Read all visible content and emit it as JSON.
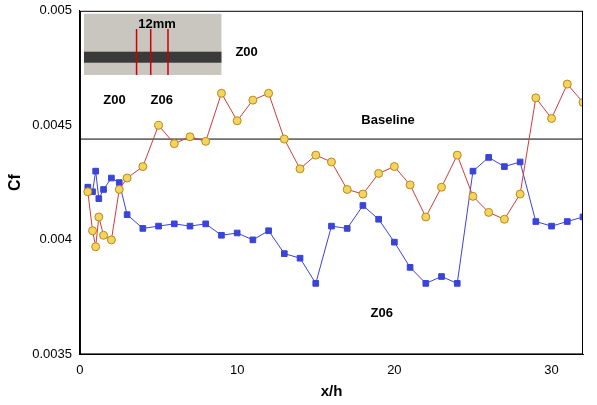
{
  "chart_data": {
    "type": "line",
    "x_label": "x/h",
    "y_label": "Cf",
    "xlim": [
      0,
      32
    ],
    "xticks": [
      0,
      10,
      20,
      30
    ],
    "ylim": [
      0.0035,
      0.005
    ],
    "yticks": [
      0.0035,
      0.004,
      0.0045,
      0.005
    ],
    "grid": false,
    "series": [
      {
        "name": "Z00",
        "color": "#d23c3c",
        "marker": "circle",
        "line_style": "solid",
        "x": [
          0.5,
          0.8,
          1.0,
          1.2,
          1.5,
          2,
          2.5,
          3,
          4,
          5,
          6,
          7,
          8,
          9,
          10,
          11,
          12,
          13,
          14,
          15,
          16,
          17,
          18,
          19,
          20,
          21,
          22,
          23,
          24,
          25,
          26,
          27,
          28,
          29,
          30,
          31,
          32
        ],
        "values": [
          0.00421,
          0.00404,
          0.00397,
          0.0041,
          0.00402,
          0.004,
          0.00422,
          0.00427,
          0.00432,
          0.0045,
          0.00442,
          0.00445,
          0.00443,
          0.00464,
          0.00452,
          0.00461,
          0.00464,
          0.00444,
          0.00431,
          0.00437,
          0.00434,
          0.00422,
          0.0042,
          0.00429,
          0.00432,
          0.00424,
          0.0041,
          0.00423,
          0.00437,
          0.00419,
          0.00412,
          0.00409,
          0.0042,
          0.00462,
          0.00453,
          0.00468,
          0.0046
        ]
      },
      {
        "name": "Z06",
        "color": "#3a44d8",
        "marker": "square",
        "line_style": "solid",
        "x": [
          0.5,
          0.8,
          1.0,
          1.2,
          1.5,
          2,
          2.5,
          3,
          4,
          5,
          6,
          7,
          8,
          9,
          10,
          11,
          12,
          13,
          14,
          15,
          16,
          17,
          18,
          19,
          20,
          21,
          22,
          23,
          24,
          25,
          26,
          27,
          28,
          29,
          30,
          31,
          32
        ],
        "values": [
          0.00423,
          0.00421,
          0.0043,
          0.00418,
          0.00422,
          0.00427,
          0.00425,
          0.00411,
          0.00405,
          0.00406,
          0.00407,
          0.00406,
          0.00407,
          0.00402,
          0.00403,
          0.004,
          0.00404,
          0.00394,
          0.00392,
          0.00381,
          0.00406,
          0.00405,
          0.00415,
          0.00409,
          0.00399,
          0.00388,
          0.00381,
          0.00384,
          0.00381,
          0.0043,
          0.00436,
          0.00432,
          0.00434,
          0.00408,
          0.00406,
          0.00408,
          0.0041
        ]
      },
      {
        "name": "Baseline",
        "color": "#000000",
        "marker": "none",
        "line_style": "solid",
        "x": [
          0,
          32
        ],
        "values": [
          0.00444,
          0.00444
        ]
      }
    ],
    "annotations": [
      {
        "text": "Z00",
        "x": 10.6,
        "y": 0.00482
      },
      {
        "text": "Baseline",
        "x": 19.6,
        "y": 0.00452
      },
      {
        "text": "Z06",
        "x": 19.2,
        "y": 0.00368
      },
      {
        "text": "12mm",
        "x": 4.9,
        "y": 0.00494
      },
      {
        "text": "Z00",
        "x": 2.2,
        "y": 0.00461
      },
      {
        "text": "Z06",
        "x": 5.2,
        "y": 0.00461
      }
    ]
  }
}
